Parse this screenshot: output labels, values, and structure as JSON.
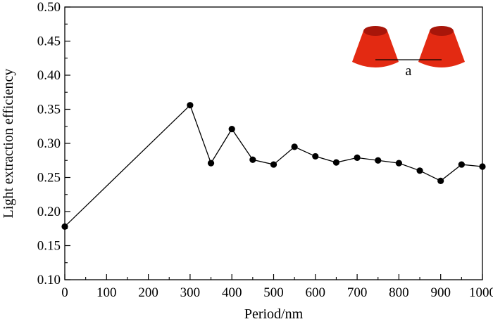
{
  "chart_data": {
    "type": "line",
    "title": "",
    "xlabel": "Period/nm",
    "ylabel": "Light extraction efficiency",
    "xlim": [
      0,
      1000
    ],
    "ylim": [
      0.1,
      0.5
    ],
    "x_ticks": [
      "0",
      "100",
      "200",
      "300",
      "400",
      "500",
      "600",
      "700",
      "800",
      "900",
      "1000"
    ],
    "y_ticks": [
      "0.10",
      "0.15",
      "0.20",
      "0.25",
      "0.30",
      "0.35",
      "0.40",
      "0.45",
      "0.50"
    ],
    "grid": false,
    "series": [
      {
        "x": [
          0,
          300,
          350,
          400,
          450,
          500,
          550,
          600,
          650,
          700,
          750,
          800,
          850,
          900,
          950,
          1000
        ],
        "y": [
          0.178,
          0.356,
          0.271,
          0.321,
          0.276,
          0.269,
          0.295,
          0.281,
          0.272,
          0.279,
          0.275,
          0.271,
          0.26,
          0.245,
          0.269,
          0.266
        ]
      }
    ],
    "inset": {
      "label": "a",
      "cone_color": "#e32a12",
      "cone_top_color": "#a8160a"
    }
  }
}
